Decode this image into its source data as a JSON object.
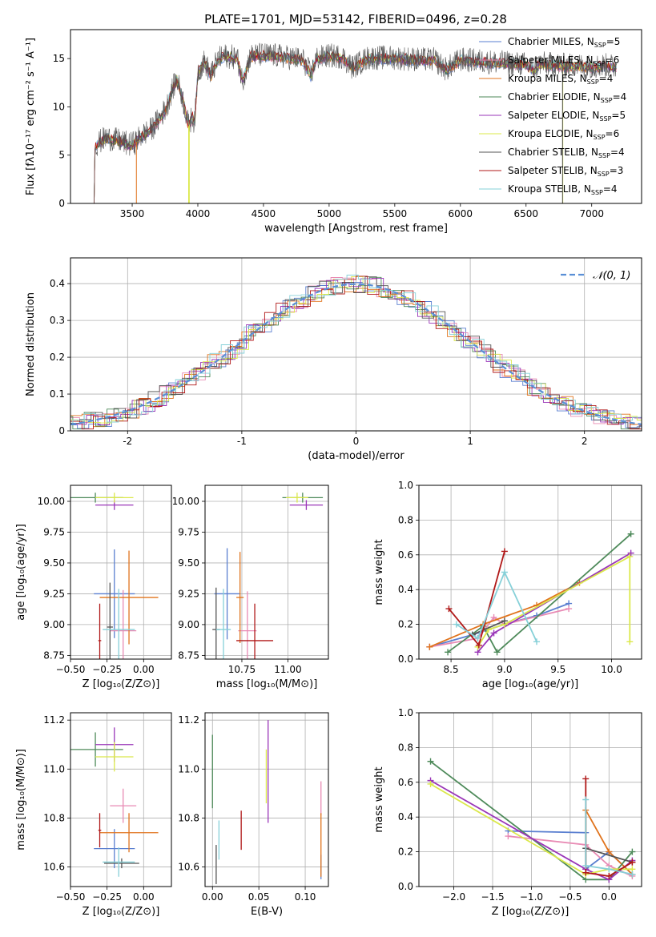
{
  "chart_data": [
    {
      "id": "spectrum",
      "type": "line",
      "title": "PLATE=1701, MJD=53142, FIBERID=0496, z=0.28",
      "xlabel": "wavelength [Angstrom, rest frame]",
      "ylabel": "Flux [fλ10⁻¹⁷ erg cm⁻² s⁻¹ A⁻¹]",
      "xlim": [
        3030,
        7380
      ],
      "ylim": [
        0,
        18
      ],
      "xticks": [
        3500,
        4000,
        4500,
        5000,
        5500,
        6000,
        6500,
        7000
      ],
      "yticks": [
        0,
        5,
        10,
        15
      ],
      "grid": false,
      "legend": "upper-right",
      "spectrum_template": {
        "x": [
          3210,
          3215,
          3222,
          3240,
          3300,
          3400,
          3480,
          3520,
          3560,
          3600,
          3650,
          3700,
          3760,
          3800,
          3840,
          3880,
          3930,
          3960,
          3975,
          4000,
          4050,
          4100,
          4150,
          4200,
          4300,
          4340,
          4400,
          4500,
          4600,
          4700,
          4800,
          4862,
          4900,
          5000,
          5100,
          5175,
          5300,
          5400,
          5500,
          5600,
          5700,
          5800,
          5890,
          6000,
          6100,
          6200,
          6300,
          6400,
          6500,
          6563,
          6600,
          6700,
          6800,
          6900,
          7000,
          7100,
          7190
        ],
        "y": [
          0,
          5.5,
          5.8,
          6.2,
          6.7,
          6.4,
          6.0,
          6.2,
          6.8,
          7.2,
          7.6,
          8.6,
          9.8,
          11.5,
          12.8,
          11.0,
          8.0,
          9.0,
          8.2,
          13.5,
          14.6,
          13.2,
          14.8,
          15.2,
          15.0,
          12.6,
          15.2,
          15.3,
          15.2,
          15.0,
          14.8,
          13.2,
          14.9,
          15.2,
          15.1,
          14.0,
          15.0,
          15.0,
          15.0,
          14.9,
          14.8,
          14.8,
          13.8,
          14.8,
          14.7,
          14.6,
          14.5,
          14.4,
          14.3,
          13.8,
          14.4,
          14.3,
          14.2,
          14.2,
          14.1,
          14.2,
          14.1
        ]
      },
      "series": [
        {
          "name": "Chabrier MILES, N",
          "sub": "SSP",
          "suffix": "=5",
          "color": "#5a7fd0"
        },
        {
          "name": "Salpeter MILES, N",
          "sub": "SSP",
          "suffix": "=6",
          "color": "#e88ab4"
        },
        {
          "name": "Kroupa MILES, N",
          "sub": "SSP",
          "suffix": "=4",
          "color": "#e0731c"
        },
        {
          "name": "Chabrier ELODIE, N",
          "sub": "SSP",
          "suffix": "=4",
          "color": "#4e8a5a"
        },
        {
          "name": "Salpeter ELODIE, N",
          "sub": "SSP",
          "suffix": "=5",
          "color": "#9a36b8"
        },
        {
          "name": "Kroupa ELODIE, N",
          "sub": "SSP",
          "suffix": "=6",
          "color": "#dbe84a"
        },
        {
          "name": "Chabrier STELIB, N",
          "sub": "SSP",
          "suffix": "=4",
          "color": "#555555"
        },
        {
          "name": "Salpeter STELIB, N",
          "sub": "SSP",
          "suffix": "=3",
          "color": "#b01818"
        },
        {
          "name": "Kroupa STELIB, N",
          "sub": "SSP",
          "suffix": "=4",
          "color": "#86d0d8"
        }
      ]
    },
    {
      "id": "residuals",
      "type": "line",
      "xlabel": "(data-model)/error",
      "ylabel": "Normed distribution",
      "xlim": [
        -2.5,
        2.5
      ],
      "ylim": [
        0,
        0.47
      ],
      "xticks": [
        -2,
        -1,
        0,
        1,
        2
      ],
      "yticks": [
        0.0,
        0.1,
        0.2,
        0.3,
        0.4
      ],
      "grid": true,
      "legend": "upper-right",
      "reference": {
        "name": "𝒩(0, 1)",
        "color": "#5a8fd6"
      },
      "bin_width": 0.1
    },
    {
      "id": "age-vs-Z",
      "type": "scatter",
      "xlabel": "Z [log₁₀(Z/Z⊙)]",
      "ylabel": "age  [log₁₀(age/yr)]",
      "xlim": [
        -0.5,
        0.19
      ],
      "ylim": [
        8.72,
        10.13
      ],
      "xticks": [
        -0.5,
        -0.25,
        0.0
      ],
      "xtick_labels": [
        "−0.50",
        "−0.25",
        "0.00"
      ],
      "yticks": [
        8.75,
        9.0,
        9.25,
        9.5,
        9.75,
        10.0
      ],
      "ytick_labels": [
        "8.75",
        "9.00",
        "9.25",
        "9.50",
        "9.75",
        "10.00"
      ],
      "grid": true,
      "points": [
        {
          "x": -0.2,
          "xerr": 0.14,
          "y": 9.25,
          "yerr": 0.36,
          "color": "#5a7fd0"
        },
        {
          "x": -0.14,
          "xerr": 0.09,
          "y": 8.95,
          "yerr": 0.33,
          "color": "#e88ab4"
        },
        {
          "x": -0.1,
          "xerr": 0.2,
          "y": 9.22,
          "yerr": 0.38,
          "color": "#e0731c"
        },
        {
          "x": -0.33,
          "xerr": 0.19,
          "y": 10.03,
          "yerr": 0.04,
          "color": "#4e8a5a"
        },
        {
          "x": -0.2,
          "xerr": 0.13,
          "y": 9.97,
          "yerr": 0.04,
          "color": "#9a36b8"
        },
        {
          "x": -0.2,
          "xerr": 0.13,
          "y": 10.03,
          "yerr": 0.04,
          "color": "#dbe84a"
        },
        {
          "x": -0.23,
          "xerr": 0.02,
          "y": 8.98,
          "yerr": 0.36,
          "color": "#555555"
        },
        {
          "x": -0.3,
          "xerr": 0.01,
          "y": 8.87,
          "yerr": 0.3,
          "color": "#b01818"
        },
        {
          "x": -0.17,
          "xerr": 0.11,
          "y": 8.96,
          "yerr": 0.33,
          "color": "#86d0d8"
        }
      ]
    },
    {
      "id": "age-vs-mass",
      "type": "scatter",
      "xlabel": "mass [log₁₀(M/M⊙)]",
      "xlim": [
        10.55,
        11.22
      ],
      "ylim": [
        8.72,
        10.13
      ],
      "xticks": [
        10.75,
        11.0
      ],
      "xtick_labels": [
        "10.75",
        "11.00"
      ],
      "yticks": [
        8.75,
        9.0,
        9.25,
        9.5,
        9.75,
        10.0
      ],
      "ytick_labels": [
        "8.75",
        "9.00",
        "9.25",
        "9.50",
        "9.75",
        "10.00"
      ],
      "grid": true,
      "points": [
        {
          "x": 10.67,
          "xerr": 0.07,
          "y": 9.25,
          "yerr": 0.37,
          "color": "#5a7fd0"
        },
        {
          "x": 10.78,
          "xerr": 0.05,
          "y": 8.95,
          "yerr": 0.32,
          "color": "#e88ab4"
        },
        {
          "x": 10.74,
          "xerr": 0.02,
          "y": 9.22,
          "yerr": 0.37,
          "color": "#e0731c"
        },
        {
          "x": 11.08,
          "xerr": 0.11,
          "y": 10.03,
          "yerr": 0.04,
          "color": "#4e8a5a"
        },
        {
          "x": 11.1,
          "xerr": 0.09,
          "y": 9.97,
          "yerr": 0.04,
          "color": "#9a36b8"
        },
        {
          "x": 11.05,
          "xerr": 0.06,
          "y": 10.03,
          "yerr": 0.04,
          "color": "#dbe84a"
        },
        {
          "x": 10.61,
          "xerr": 0.02,
          "y": 8.96,
          "yerr": 0.34,
          "color": "#555555"
        },
        {
          "x": 10.82,
          "xerr": 0.1,
          "y": 8.87,
          "yerr": 0.3,
          "color": "#b01818"
        },
        {
          "x": 10.65,
          "xerr": 0.04,
          "y": 8.96,
          "yerr": 0.33,
          "color": "#86d0d8"
        }
      ]
    },
    {
      "id": "weight-vs-age",
      "type": "line",
      "xlabel": "age  [log₁₀(age/yr)]",
      "ylabel": "mass weight",
      "xlim": [
        8.2,
        10.28
      ],
      "ylim": [
        0,
        1
      ],
      "xticks": [
        8.5,
        9.0,
        9.5,
        10.0
      ],
      "xtick_labels": [
        "8.5",
        "9.0",
        "9.5",
        "10.0"
      ],
      "yticks": [
        0,
        0.2,
        0.4,
        0.6,
        0.8,
        1.0
      ],
      "ytick_labels": [
        "0.0",
        "0.2",
        "0.4",
        "0.6",
        "0.8",
        "1.0"
      ],
      "grid": true,
      "series": [
        {
          "color": "#5a7fd0",
          "x": [
            8.3,
            8.7,
            9.0,
            9.3,
            9.6
          ],
          "y": [
            0.07,
            0.14,
            0.2,
            0.25,
            0.32
          ]
        },
        {
          "color": "#e88ab4",
          "x": [
            8.3,
            8.75,
            8.9,
            9.0,
            9.6
          ],
          "y": [
            0.07,
            0.12,
            0.24,
            0.2,
            0.29
          ]
        },
        {
          "color": "#e0731c",
          "x": [
            8.3,
            8.8,
            9.3,
            9.7
          ],
          "y": [
            0.07,
            0.2,
            0.31,
            0.44
          ]
        },
        {
          "color": "#4e8a5a",
          "x": [
            8.47,
            8.8,
            8.93,
            10.18
          ],
          "y": [
            0.04,
            0.19,
            0.04,
            0.72
          ]
        },
        {
          "color": "#9a36b8",
          "x": [
            8.75,
            8.9,
            10.18
          ],
          "y": [
            0.04,
            0.15,
            0.61
          ]
        },
        {
          "color": "#dbe84a",
          "x": [
            8.75,
            8.85,
            9.0,
            10.17,
            10.17
          ],
          "y": [
            0.07,
            0.17,
            0.2,
            0.59,
            0.1
          ]
        },
        {
          "color": "#555555",
          "x": [
            8.7,
            9.0
          ],
          "y": [
            0.14,
            0.22
          ]
        },
        {
          "color": "#b01818",
          "x": [
            8.48,
            8.76,
            9.0
          ],
          "y": [
            0.29,
            0.08,
            0.62
          ]
        },
        {
          "color": "#86d0d8",
          "x": [
            8.55,
            8.75,
            9.0,
            9.3
          ],
          "y": [
            0.2,
            0.12,
            0.5,
            0.1
          ]
        }
      ]
    },
    {
      "id": "mass-vs-Z",
      "type": "scatter",
      "xlabel": "Z [log₁₀(Z/Z⊙)]",
      "ylabel": "mass [log₁₀(M/M⊙)]",
      "xlim": [
        -0.5,
        0.19
      ],
      "ylim": [
        10.52,
        11.23
      ],
      "xticks": [
        -0.5,
        -0.25,
        0.0
      ],
      "xtick_labels": [
        "−0.50",
        "−0.25",
        "0.00"
      ],
      "yticks": [
        10.6,
        10.8,
        11.0,
        11.2
      ],
      "ytick_labels": [
        "10.6",
        "10.8",
        "11.0",
        "11.2"
      ],
      "grid": true,
      "points": [
        {
          "x": -0.2,
          "xerr": 0.14,
          "y": 10.675,
          "yerr": 0.08,
          "color": "#5a7fd0"
        },
        {
          "x": -0.14,
          "xerr": 0.09,
          "y": 10.85,
          "yerr": 0.07,
          "color": "#e88ab4"
        },
        {
          "x": -0.1,
          "xerr": 0.2,
          "y": 10.74,
          "yerr": 0.08,
          "color": "#e0731c"
        },
        {
          "x": -0.33,
          "xerr": 0.19,
          "y": 11.08,
          "yerr": 0.07,
          "color": "#4e8a5a"
        },
        {
          "x": -0.2,
          "xerr": 0.13,
          "y": 11.1,
          "yerr": 0.07,
          "color": "#9a36b8"
        },
        {
          "x": -0.2,
          "xerr": 0.13,
          "y": 11.05,
          "yerr": 0.06,
          "color": "#dbe84a"
        },
        {
          "x": -0.15,
          "xerr": 0.12,
          "y": 10.615,
          "yerr": 0.02,
          "color": "#555555"
        },
        {
          "x": -0.3,
          "xerr": 0.01,
          "y": 10.75,
          "yerr": 0.07,
          "color": "#b01818"
        },
        {
          "x": -0.17,
          "xerr": 0.11,
          "y": 10.62,
          "yerr": 0.06,
          "color": "#86d0d8"
        }
      ]
    },
    {
      "id": "mass-vs-EBV",
      "type": "scatter",
      "xlabel": "E(B-V)",
      "xlim": [
        -0.008,
        0.125
      ],
      "ylim": [
        10.52,
        11.23
      ],
      "xticks": [
        0.0,
        0.05,
        0.1
      ],
      "xtick_labels": [
        "0.00",
        "0.05",
        "0.10"
      ],
      "yticks": [
        10.6,
        10.8,
        11.0,
        11.2
      ],
      "ytick_labels": [
        "10.6",
        "10.8",
        "11.0",
        "11.2"
      ],
      "grid": true,
      "points": [
        {
          "x": 0.117,
          "xerr": 0,
          "y": 10.6,
          "yerr": 0.05,
          "color": "#5a7fd0"
        },
        {
          "x": 0.117,
          "xerr": 0,
          "y": 10.88,
          "yerr": 0.07,
          "color": "#e88ab4"
        },
        {
          "x": 0.117,
          "xerr": 0,
          "y": 10.69,
          "yerr": 0.13,
          "color": "#e0731c"
        },
        {
          "x": 0.0,
          "xerr": 0,
          "y": 10.99,
          "yerr": 0.15,
          "color": "#4e8a5a"
        },
        {
          "x": 0.06,
          "xerr": 0,
          "y": 10.99,
          "yerr": 0.21,
          "color": "#9a36b8"
        },
        {
          "x": 0.058,
          "xerr": 0,
          "y": 10.97,
          "yerr": 0.11,
          "color": "#dbe84a"
        },
        {
          "x": 0.004,
          "xerr": 0,
          "y": 10.61,
          "yerr": 0.08,
          "color": "#555555"
        },
        {
          "x": 0.031,
          "xerr": 0,
          "y": 10.75,
          "yerr": 0.08,
          "color": "#b01818"
        },
        {
          "x": 0.007,
          "xerr": 0,
          "y": 10.71,
          "yerr": 0.08,
          "color": "#86d0d8"
        }
      ]
    },
    {
      "id": "weight-vs-Z",
      "type": "line",
      "xlabel": "Z [log₁₀(Z/Z⊙)]",
      "ylabel": "mass weight",
      "xlim": [
        -2.45,
        0.42
      ],
      "ylim": [
        0,
        1
      ],
      "xticks": [
        -2.0,
        -1.5,
        -1.0,
        -0.5,
        0.0
      ],
      "xtick_labels": [
        "−2.0",
        "−1.5",
        "−1.0",
        "−0.5",
        "0.0"
      ],
      "yticks": [
        0,
        0.2,
        0.4,
        0.6,
        0.8,
        1.0
      ],
      "ytick_labels": [
        "0.0",
        "0.2",
        "0.4",
        "0.6",
        "0.8",
        "1.0"
      ],
      "grid": true,
      "series": [
        {
          "color": "#5a7fd0",
          "x": [
            -1.3,
            -0.3,
            -0.3,
            0.0,
            0.3
          ],
          "y": [
            0.32,
            0.31,
            0.1,
            0.2,
            0.07
          ]
        },
        {
          "color": "#e88ab4",
          "x": [
            -1.3,
            -0.3,
            0.0,
            0.3
          ],
          "y": [
            0.29,
            0.24,
            0.12,
            0.06
          ]
        },
        {
          "color": "#e0731c",
          "x": [
            -0.3,
            -0.3,
            0.0,
            0.3
          ],
          "y": [
            0.1,
            0.44,
            0.2,
            0.07
          ]
        },
        {
          "color": "#4e8a5a",
          "x": [
            -2.3,
            -0.3,
            0.0,
            0.3
          ],
          "y": [
            0.72,
            0.04,
            0.04,
            0.2
          ]
        },
        {
          "color": "#9a36b8",
          "x": [
            -2.3,
            -0.3,
            0.0,
            0.3
          ],
          "y": [
            0.61,
            0.1,
            0.04,
            0.15
          ]
        },
        {
          "color": "#dbe84a",
          "x": [
            -2.3,
            -0.3,
            0.0,
            0.3
          ],
          "y": [
            0.59,
            0.07,
            0.1,
            0.1
          ]
        },
        {
          "color": "#555555",
          "x": [
            -0.3,
            0.3
          ],
          "y": [
            0.22,
            0.14
          ]
        },
        {
          "color": "#b01818",
          "x": [
            -0.3,
            -0.3,
            0.0,
            0.3
          ],
          "y": [
            0.62,
            0.08,
            0.06,
            0.14
          ]
        },
        {
          "color": "#86d0d8",
          "x": [
            -0.3,
            -0.3,
            0.0,
            0.3
          ],
          "y": [
            0.5,
            0.12,
            0.1,
            0.07
          ]
        }
      ]
    }
  ]
}
